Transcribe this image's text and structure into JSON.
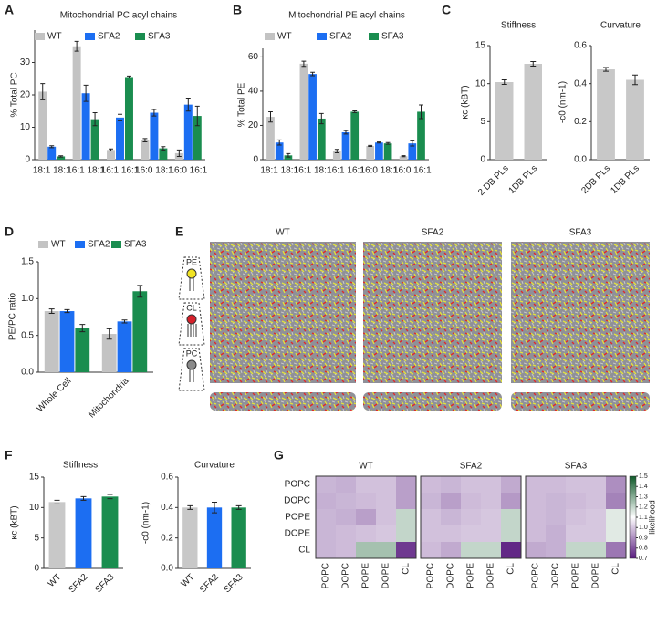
{
  "chart_data": [
    {
      "panel": "A",
      "type": "bar",
      "title": "Mitochondrial PC acyl chains",
      "ylabel": "% Total PC",
      "categories": [
        "18:1 18:1",
        "16:1 18:1",
        "16:1 16:1",
        "16:0 18:1",
        "16:0 16:1"
      ],
      "series": [
        {
          "name": "WT",
          "color": "#c3c3c3",
          "values": [
            21,
            35,
            3,
            6,
            2
          ],
          "errors": [
            2.5,
            1.5,
            0.3,
            0.5,
            1
          ]
        },
        {
          "name": "SFA2",
          "color": "#1c6ef2",
          "values": [
            4,
            20.5,
            13,
            14.5,
            17
          ],
          "errors": [
            0.3,
            2.5,
            1,
            1,
            2
          ]
        },
        {
          "name": "SFA3",
          "color": "#1a8d4f",
          "values": [
            1,
            12.5,
            25.5,
            3.5,
            13.5
          ],
          "errors": [
            0.2,
            2,
            0.3,
            0.5,
            3
          ]
        }
      ],
      "ylim": [
        0,
        40
      ],
      "yticks": [
        0,
        10,
        20,
        30
      ]
    },
    {
      "panel": "B",
      "type": "bar",
      "title": "Mitochondrial PE acyl chains",
      "ylabel": "% Total PE",
      "categories": [
        "18:1 18:1",
        "16:1 18:1",
        "16:1 16:1",
        "16:0 18:1",
        "16:0 16:1"
      ],
      "series": [
        {
          "name": "WT",
          "color": "#c3c3c3",
          "values": [
            25,
            56,
            5,
            8,
            2
          ],
          "errors": [
            3,
            1.5,
            1,
            0.3,
            0.3
          ]
        },
        {
          "name": "SFA2",
          "color": "#1c6ef2",
          "values": [
            10,
            50,
            16,
            10,
            9.5
          ],
          "errors": [
            1.5,
            1,
            1,
            0.3,
            1.5
          ]
        },
        {
          "name": "SFA3",
          "color": "#1a8d4f",
          "values": [
            2.5,
            24,
            28,
            9.5,
            28
          ],
          "errors": [
            1,
            3,
            0.5,
            0.5,
            4
          ]
        }
      ],
      "ylim": [
        0,
        65
      ],
      "yticks": [
        0,
        20,
        40,
        60
      ]
    },
    {
      "panel": "C",
      "type": "bar",
      "title": "Stiffness",
      "ylabel": "κc (kBT)",
      "categories": [
        "2 DB PLs",
        "1DB PLs"
      ],
      "values": [
        10.2,
        12.6
      ],
      "errors": [
        0.3,
        0.3
      ],
      "color": "#c8c8c8",
      "ylim": [
        0,
        15
      ],
      "yticks": [
        0,
        5,
        10,
        15
      ]
    },
    {
      "type": "bar",
      "title": "Curvature",
      "ylabel": "-c0 (nm-1)",
      "categories": [
        "2DB PLs",
        "1DB PLs"
      ],
      "values": [
        0.475,
        0.42
      ],
      "errors": [
        0.01,
        0.025
      ],
      "color": "#c8c8c8",
      "ylim": [
        0,
        0.6
      ],
      "yticks": [
        {
          "value": 0,
          "label": "0.0"
        },
        0.2,
        0.4,
        0.6
      ]
    },
    {
      "panel": "D",
      "type": "bar",
      "ylabel": "PE/PC ratio",
      "categories": [
        "Whole Cell",
        "Mitochondria"
      ],
      "series": [
        {
          "name": "WT",
          "color": "#c3c3c3",
          "values": [
            0.83,
            0.52
          ],
          "errors": [
            0.03,
            0.07
          ]
        },
        {
          "name": "SFA2",
          "color": "#1c6ef2",
          "values": [
            0.83,
            0.69
          ],
          "errors": [
            0.02,
            0.02
          ]
        },
        {
          "name": "SFA3",
          "color": "#1a8d4f",
          "values": [
            0.6,
            1.1
          ],
          "errors": [
            0.05,
            0.08
          ]
        }
      ],
      "ylim": [
        0,
        1.5
      ],
      "yticks": [
        {
          "value": 0,
          "label": "0.0"
        },
        0.5,
        {
          "value": 1,
          "label": "1.0"
        },
        1.5
      ]
    },
    {
      "panel": "F",
      "type": "bar",
      "title": "Stiffness",
      "ylabel": "κc (kBT)",
      "categories": [
        "WT",
        "SFA2",
        "SFA3"
      ],
      "values": [
        10.9,
        11.5,
        11.8
      ],
      "errors": [
        0.3,
        0.3,
        0.35
      ],
      "colors": [
        "#c8c8c8",
        "#1c6ef2",
        "#1a8d4f"
      ],
      "ylim": [
        0,
        15
      ],
      "yticks": [
        0,
        5,
        10,
        15
      ]
    },
    {
      "type": "bar",
      "title": "Curvature",
      "ylabel": "-c0 (nm-1)",
      "categories": [
        "WT",
        "SFA2",
        "SFA3"
      ],
      "values": [
        0.4,
        0.4,
        0.4
      ],
      "errors": [
        0.012,
        0.035,
        0.012
      ],
      "colors": [
        "#c8c8c8",
        "#1c6ef2",
        "#1a8d4f"
      ],
      "ylim": [
        0,
        0.6
      ],
      "yticks": [
        {
          "value": 0,
          "label": "0.0"
        },
        0.2,
        0.4,
        0.6
      ]
    },
    {
      "panel": "G",
      "type": "heatmap",
      "title": "WT",
      "rows": [
        "POPC",
        "DOPC",
        "POPE",
        "DOPE",
        "CL"
      ],
      "columns": [
        "POPC",
        "DOPC",
        "POPE",
        "DOPE",
        "CL"
      ],
      "values": [
        [
          0.97,
          0.96,
          0.99,
          0.99,
          0.93
        ],
        [
          0.96,
          0.97,
          0.98,
          0.99,
          0.93
        ],
        [
          0.97,
          0.96,
          0.93,
          0.99,
          1.2
        ],
        [
          0.97,
          0.98,
          0.99,
          1.0,
          1.2
        ],
        [
          0.97,
          0.98,
          1.25,
          1.25,
          0.75
        ]
      ],
      "clim": [
        0.7,
        1.5
      ],
      "colormap": [
        "#5a1d80",
        "#ffffff",
        "#0f5a2a"
      ]
    },
    {
      "type": "heatmap",
      "title": "SFA2",
      "columns": [
        "POPC",
        "DOPC",
        "POPE",
        "DOPE",
        "CL"
      ],
      "values": [
        [
          0.98,
          0.97,
          0.99,
          0.99,
          0.95
        ],
        [
          0.97,
          0.93,
          0.98,
          0.99,
          0.92
        ],
        [
          0.99,
          0.97,
          0.99,
          1.0,
          1.2
        ],
        [
          0.99,
          0.99,
          1.0,
          1.0,
          1.2
        ],
        [
          0.98,
          0.95,
          1.2,
          1.2,
          0.72
        ]
      ],
      "clim": [
        0.7,
        1.5
      ],
      "colormap": [
        "#5a1d80",
        "#ffffff",
        "#0f5a2a"
      ]
    },
    {
      "type": "heatmap",
      "title": "SFA3",
      "columns": [
        "POPC",
        "DOPC",
        "POPE",
        "DOPE",
        "CL"
      ],
      "values": [
        [
          0.98,
          0.98,
          0.99,
          0.99,
          0.9
        ],
        [
          0.98,
          0.97,
          0.98,
          0.99,
          0.88
        ],
        [
          0.98,
          0.97,
          0.99,
          1.0,
          1.15
        ],
        [
          0.98,
          0.96,
          1.0,
          1.0,
          1.15
        ],
        [
          0.95,
          0.96,
          1.2,
          1.2,
          0.86
        ]
      ],
      "clim": [
        0.7,
        1.5
      ],
      "colormap": [
        "#5a1d80",
        "#ffffff",
        "#0f5a2a"
      ],
      "colorbar_label": "likelihood",
      "cticks": [
        0.7,
        0.8,
        0.9,
        {
          "value": 1,
          "label": "1.0"
        },
        1.1,
        1.2,
        1.3,
        1.4,
        1.5
      ]
    }
  ],
  "simulation": {
    "panel": "E",
    "titles": [
      "WT",
      "SFA2",
      "SFA3"
    ],
    "lipids": [
      "PE",
      "CL",
      "PC"
    ]
  }
}
